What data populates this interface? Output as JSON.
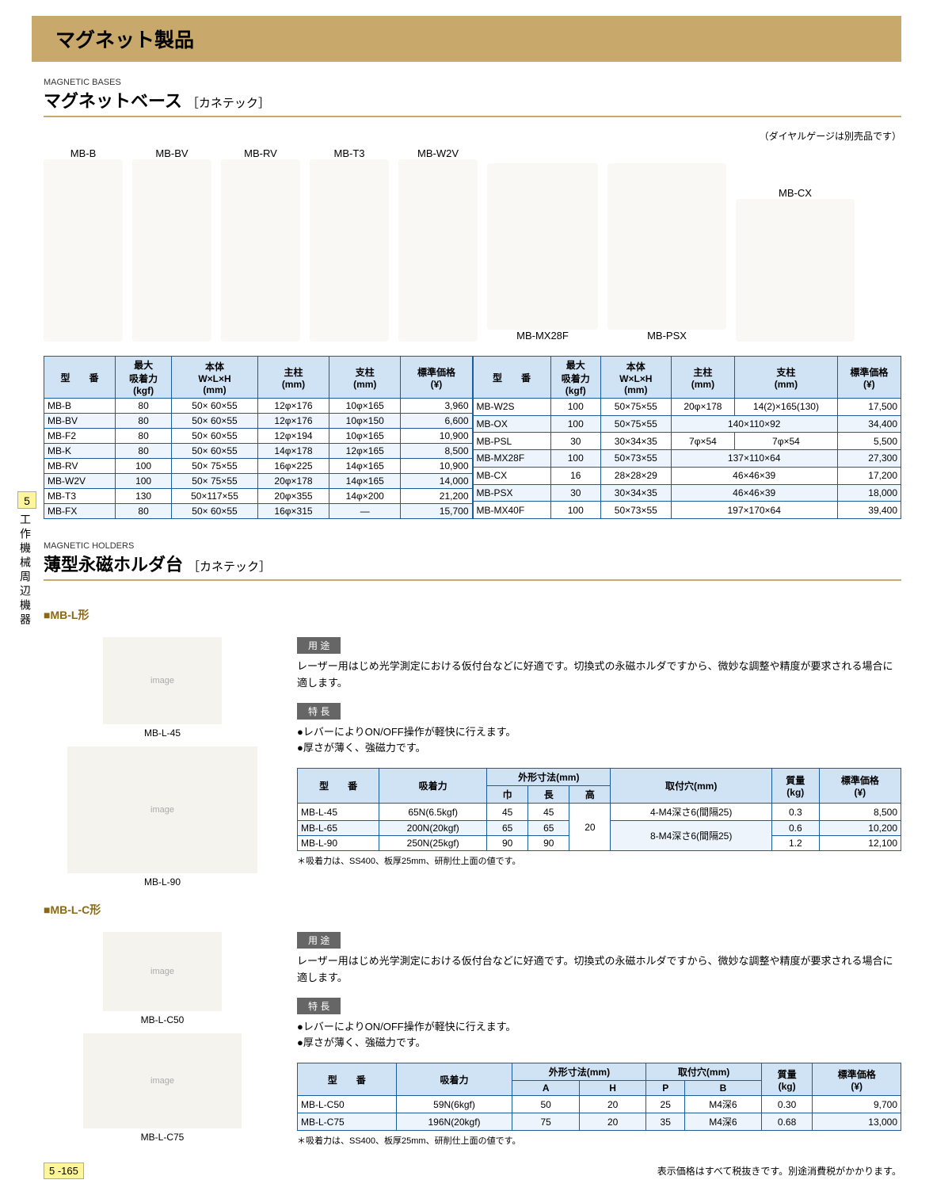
{
  "colors": {
    "accent": "#c9a86b",
    "table_border": "#1b5c9c",
    "table_header_bg": "#cfe3f5",
    "table_alt_bg": "#eef4fb",
    "tab_bg": "#fff59a"
  },
  "page_header": "マグネット製品",
  "section1": {
    "en": "MAGNETIC BASES",
    "jp": "マグネットベース",
    "sub": "［カネテック］"
  },
  "products1": [
    "MB-B",
    "MB-BV",
    "MB-RV",
    "MB-T3",
    "MB-W2V",
    "MB-MX28F",
    "MB-PSX",
    "MB-CX"
  ],
  "gauge_note": "（ダイヤルゲージは別売品です）",
  "table1": {
    "headers": [
      "型　　番",
      "最大\n吸着力\n(kgf)",
      "本体\nW×L×H\n(mm)",
      "主柱\n(mm)",
      "支柱\n(mm)",
      "標準価格\n(¥)"
    ],
    "left": [
      [
        "MB-B",
        "80",
        "50× 60×55",
        "12φ×176",
        "10φ×165",
        "3,960"
      ],
      [
        "MB-BV",
        "80",
        "50× 60×55",
        "12φ×176",
        "10φ×150",
        "6,600"
      ],
      [
        "MB-F2",
        "80",
        "50× 60×55",
        "12φ×194",
        "10φ×165",
        "10,900"
      ],
      [
        "MB-K",
        "80",
        "50× 60×55",
        "14φ×178",
        "12φ×165",
        "8,500"
      ],
      [
        "MB-RV",
        "100",
        "50× 75×55",
        "16φ×225",
        "14φ×165",
        "10,900"
      ],
      [
        "MB-W2V",
        "100",
        "50× 75×55",
        "20φ×178",
        "14φ×165",
        "14,000"
      ],
      [
        "MB-T3",
        "130",
        "50×117×55",
        "20φ×355",
        "14φ×200",
        "21,200"
      ],
      [
        "MB-FX",
        "80",
        "50× 60×55",
        "16φ×315",
        "―",
        "15,700"
      ]
    ],
    "right": [
      [
        "MB-W2S",
        "100",
        "50×75×55",
        "20φ×178",
        "14(2)×165(130)",
        "17,500"
      ],
      [
        "MB-OX",
        "100",
        "50×75×55",
        "140×110×92",
        "",
        "34,400"
      ],
      [
        "MB-PSL",
        "30",
        "30×34×35",
        "7φ×54",
        "7φ×54",
        "5,500"
      ],
      [
        "MB-MX28F",
        "100",
        "50×73×55",
        "137×110×64",
        "",
        "27,300"
      ],
      [
        "MB-CX",
        "16",
        "28×28×29",
        "46×46×39",
        "",
        "17,200"
      ],
      [
        "MB-PSX",
        "30",
        "30×34×35",
        "46×46×39",
        "",
        "18,000"
      ],
      [
        "MB-MX40F",
        "100",
        "50×73×55",
        "197×170×64",
        "",
        "39,400"
      ]
    ]
  },
  "side_tab": {
    "num": "5",
    "text": "工作機械周辺機器"
  },
  "section2": {
    "en": "MAGNETIC HOLDERS",
    "jp": "薄型永磁ホルダ台",
    "sub": "［カネテック］"
  },
  "mbl": {
    "title": "■MB-L形",
    "img_labels": [
      "MB-L-45",
      "MB-L-90"
    ],
    "use_label": "用 途",
    "use_text": "レーザー用はじめ光学測定における仮付台などに好適です。切換式の永磁ホルダですから、微妙な調整や精度が要求される場合に適します。",
    "feat_label": "特 長",
    "feat": [
      "レバーによりON/OFF操作が軽快に行えます。",
      "厚さが薄く、強磁力です。"
    ],
    "headers": [
      "型　　番",
      "吸着力",
      "外形寸法(mm)",
      "取付穴(mm)",
      "質量\n(kg)",
      "標準価格\n(¥)"
    ],
    "sub_headers": [
      "巾",
      "長",
      "高"
    ],
    "rows": [
      [
        "MB-L-45",
        "65N(6.5kgf)",
        "45",
        "45",
        "",
        "4-M4深さ6(間隔25)",
        "0.3",
        "8,500"
      ],
      [
        "MB-L-65",
        "200N(20kgf)",
        "65",
        "65",
        "20",
        "8-M4深さ6(間隔25)",
        "0.6",
        "10,200"
      ],
      [
        "MB-L-90",
        "250N(25kgf)",
        "90",
        "90",
        "",
        "",
        "1.2",
        "12,100"
      ]
    ],
    "note": "＊吸着力は、SS400、板厚25mm、研削仕上面の値です。"
  },
  "mblc": {
    "title": "■MB-L-C形",
    "img_labels": [
      "MB-L-C50",
      "MB-L-C75"
    ],
    "use_text": "レーザー用はじめ光学測定における仮付台などに好適です。切換式の永磁ホルダですから、微妙な調整や精度が要求される場合に適します。",
    "feat": [
      "レバーによりON/OFF操作が軽快に行えます。",
      "厚さが薄く、強磁力です。"
    ],
    "headers": [
      "型　　番",
      "吸着力",
      "外形寸法(mm)",
      "取付穴(mm)",
      "質量\n(kg)",
      "標準価格\n(¥)"
    ],
    "sub_headers": [
      "A",
      "H",
      "P",
      "B"
    ],
    "rows": [
      [
        "MB-L-C50",
        "59N(6kgf)",
        "50",
        "20",
        "25",
        "M4深6",
        "0.30",
        "9,700"
      ],
      [
        "MB-L-C75",
        "196N(20kgf)",
        "75",
        "20",
        "35",
        "M4深6",
        "0.68",
        "13,000"
      ]
    ],
    "note": "＊吸着力は、SS400、板厚25mm、研削仕上面の値です。"
  },
  "footer": {
    "page": "5 -165",
    "note": "表示価格はすべて税抜きです。別途消費税がかかります。"
  }
}
